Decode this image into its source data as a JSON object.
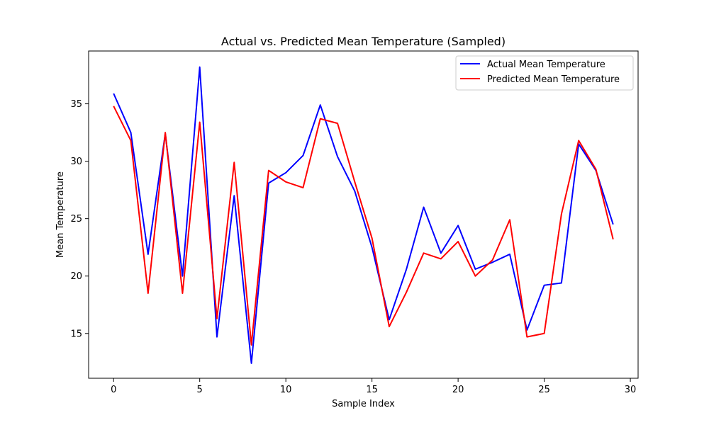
{
  "chart_data": {
    "type": "line",
    "title": "Actual vs. Predicted Mean Temperature (Sampled)",
    "xlabel": "Sample Index",
    "ylabel": "Mean Temperature",
    "xlim": [
      -1.45,
      30.45
    ],
    "ylim": [
      11.1,
      39.6
    ],
    "xticks": [
      0,
      5,
      10,
      15,
      20,
      25,
      30
    ],
    "yticks": [
      15,
      20,
      25,
      30,
      35
    ],
    "grid": false,
    "legend_position": "top-right",
    "x": [
      0,
      1,
      2,
      3,
      4,
      5,
      6,
      7,
      8,
      9,
      10,
      11,
      12,
      13,
      14,
      15,
      16,
      17,
      18,
      19,
      20,
      21,
      22,
      23,
      24,
      25,
      26,
      27,
      28,
      29
    ],
    "series": [
      {
        "name": "Actual Mean Temperature",
        "color": "#0000ff",
        "values": [
          35.9,
          32.5,
          21.9,
          32.4,
          20.0,
          38.2,
          14.7,
          27.0,
          12.4,
          28.1,
          29.0,
          30.5,
          34.9,
          30.4,
          27.4,
          22.5,
          16.2,
          20.6,
          26.0,
          22.0,
          24.4,
          20.6,
          21.2,
          21.9,
          15.3,
          19.2,
          19.4,
          31.5,
          29.2,
          24.5
        ]
      },
      {
        "name": "Predicted Mean Temperature",
        "color": "#ff0000",
        "values": [
          34.8,
          31.8,
          18.5,
          32.5,
          18.5,
          33.4,
          16.3,
          29.9,
          14.0,
          29.2,
          28.2,
          27.7,
          33.7,
          33.3,
          28.2,
          23.3,
          15.6,
          18.6,
          22.0,
          21.5,
          23.0,
          20.0,
          21.4,
          24.9,
          14.7,
          15.0,
          25.4,
          31.8,
          29.3,
          23.2
        ]
      }
    ]
  }
}
